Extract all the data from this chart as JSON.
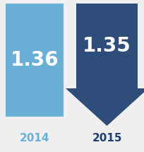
{
  "bar_2014_value": "1.36",
  "bar_2015_value": "1.35",
  "label_2014": "2014",
  "label_2015": "2015",
  "color_2014": "#6AAFD6",
  "color_2015": "#2E4D7B",
  "label_color_2014": "#6AAFD6",
  "label_color_2015": "#1F3D6E",
  "text_color": "#FFFFFF",
  "bg_color": "#EFEFEF",
  "value_fontsize": 20,
  "label_fontsize": 11,
  "fig_width": 2.04,
  "fig_height": 2.15,
  "dpi": 100
}
